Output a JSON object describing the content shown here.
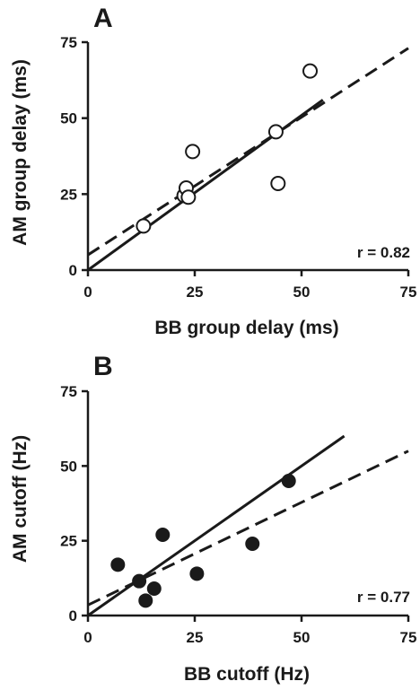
{
  "chart_data": [
    {
      "type": "scatter",
      "panel": "A",
      "xlabel": "BB group delay (ms)",
      "ylabel": "AM group delay (ms)",
      "xlim": [
        0,
        75
      ],
      "ylim": [
        0,
        75
      ],
      "xticks": [
        "0",
        "25",
        "50",
        "75"
      ],
      "yticks": [
        "0",
        "25",
        "50",
        "75"
      ],
      "annotation": "r = 0.82",
      "marker": "open-circle",
      "points": [
        {
          "x": 13,
          "y": 14.5
        },
        {
          "x": 22.5,
          "y": 24.5
        },
        {
          "x": 23,
          "y": 27
        },
        {
          "x": 23.5,
          "y": 24
        },
        {
          "x": 24.5,
          "y": 39
        },
        {
          "x": 44,
          "y": 45.5
        },
        {
          "x": 44.5,
          "y": 28.5
        },
        {
          "x": 52,
          "y": 65.5
        }
      ],
      "lines": [
        {
          "style": "solid",
          "x": [
            0,
            55
          ],
          "y": [
            0,
            56
          ]
        },
        {
          "style": "dashed",
          "x": [
            0,
            75
          ],
          "y": [
            5,
            73
          ]
        }
      ]
    },
    {
      "type": "scatter",
      "panel": "B",
      "xlabel": "BB cutoff (Hz)",
      "ylabel": "AM cutoff (Hz)",
      "xlim": [
        0,
        75
      ],
      "ylim": [
        0,
        75
      ],
      "xticks": [
        "0",
        "25",
        "50",
        "75"
      ],
      "yticks": [
        "0",
        "25",
        "50",
        "75"
      ],
      "annotation": "r = 0.77",
      "marker": "filled-circle",
      "points": [
        {
          "x": 7,
          "y": 17
        },
        {
          "x": 12,
          "y": 11.5
        },
        {
          "x": 13.5,
          "y": 5
        },
        {
          "x": 15.5,
          "y": 9
        },
        {
          "x": 17.5,
          "y": 27
        },
        {
          "x": 25.5,
          "y": 14
        },
        {
          "x": 38.5,
          "y": 24
        },
        {
          "x": 47,
          "y": 45
        }
      ],
      "lines": [
        {
          "style": "solid",
          "x": [
            0,
            60
          ],
          "y": [
            0,
            60
          ]
        },
        {
          "style": "dashed",
          "x": [
            0,
            75
          ],
          "y": [
            3.5,
            55
          ]
        }
      ]
    }
  ]
}
